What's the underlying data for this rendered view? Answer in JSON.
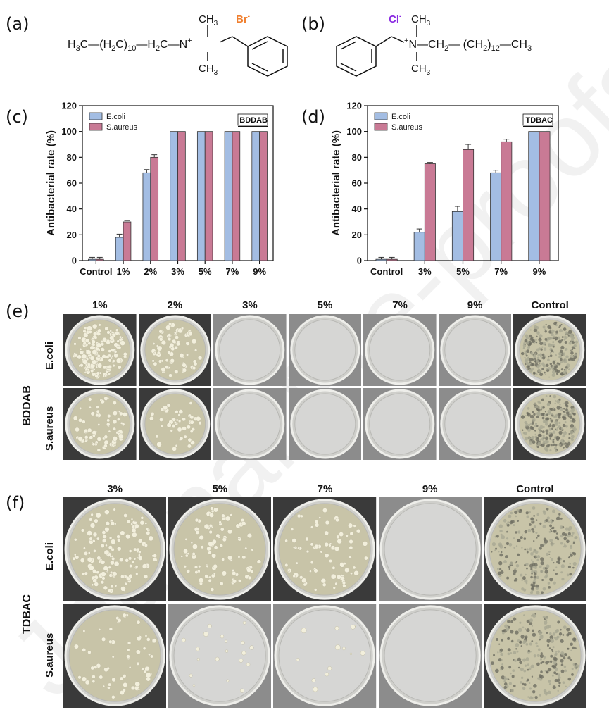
{
  "panels": {
    "a": "(a)",
    "b": "(b)",
    "c": "(c)",
    "d": "(d)",
    "e": "(e)",
    "f": "(f)"
  },
  "structure_a": {
    "formula": "H3C—(H2C)10—H2C—N+",
    "ion": "Br-",
    "ion_color": "#f08030",
    "methyl": "CH3"
  },
  "structure_b": {
    "formula": "+N—CH2— (CH2)12—CH3",
    "ion": "Cl-",
    "ion_color": "#8a2be2",
    "methyl": "CH3"
  },
  "watermark": "Journal Pre-proofs",
  "colors": {
    "ecoli": "#a3bde3",
    "saureus": "#c97a95",
    "edge": "#333333"
  },
  "chart_data": [
    {
      "type": "bar",
      "tag": "BDDAB",
      "categories": [
        "Control",
        "1%",
        "2%",
        "3%",
        "5%",
        "7%",
        "9%"
      ],
      "series": [
        {
          "name": "E.coli",
          "values": [
            1,
            18,
            68,
            100,
            100,
            100,
            100
          ],
          "errors": [
            1.5,
            2.5,
            2.5,
            0,
            0,
            0,
            0
          ]
        },
        {
          "name": "S.aureus",
          "values": [
            1,
            30,
            80,
            100,
            100,
            100,
            100
          ],
          "errors": [
            1.5,
            1,
            2,
            0,
            0,
            0,
            0
          ]
        }
      ],
      "ylabel": "Antibacterial rate (%)",
      "yticks": [
        0,
        20,
        40,
        60,
        80,
        100,
        120
      ],
      "ylim": [
        0,
        120
      ],
      "legend": "top-left"
    },
    {
      "type": "bar",
      "tag": "TDBAC",
      "categories": [
        "Control",
        "3%",
        "5%",
        "7%",
        "9%"
      ],
      "series": [
        {
          "name": "E.coli",
          "values": [
            1,
            22,
            38,
            68,
            100
          ],
          "errors": [
            1.5,
            2.5,
            4,
            2,
            0
          ]
        },
        {
          "name": "S.aureus",
          "values": [
            1,
            75,
            86,
            92,
            100
          ],
          "errors": [
            1.5,
            1,
            4,
            2,
            0
          ]
        }
      ],
      "ylabel": "Antibacterial rate (%)",
      "yticks": [
        0,
        20,
        40,
        60,
        80,
        100,
        120
      ],
      "ylim": [
        0,
        120
      ],
      "legend": "top-left"
    }
  ],
  "panel_e": {
    "group": "BDDAB",
    "columns": [
      "1%",
      "2%",
      "3%",
      "5%",
      "7%",
      "9%",
      "Control"
    ],
    "rows": [
      "E.coli",
      "S.aureus"
    ],
    "colony_levels": [
      [
        0.9,
        0.45,
        0,
        0,
        0,
        0,
        1
      ],
      [
        0.45,
        0.3,
        0,
        0,
        0,
        0,
        1
      ]
    ]
  },
  "panel_f": {
    "group": "TDBAC",
    "columns": [
      "3%",
      "5%",
      "7%",
      "9%",
      "Control"
    ],
    "rows": [
      "E.coli",
      "S.aureus"
    ],
    "colony_levels": [
      [
        0.85,
        0.6,
        0.5,
        0,
        1
      ],
      [
        0.4,
        0.12,
        0.08,
        0,
        1
      ]
    ]
  }
}
